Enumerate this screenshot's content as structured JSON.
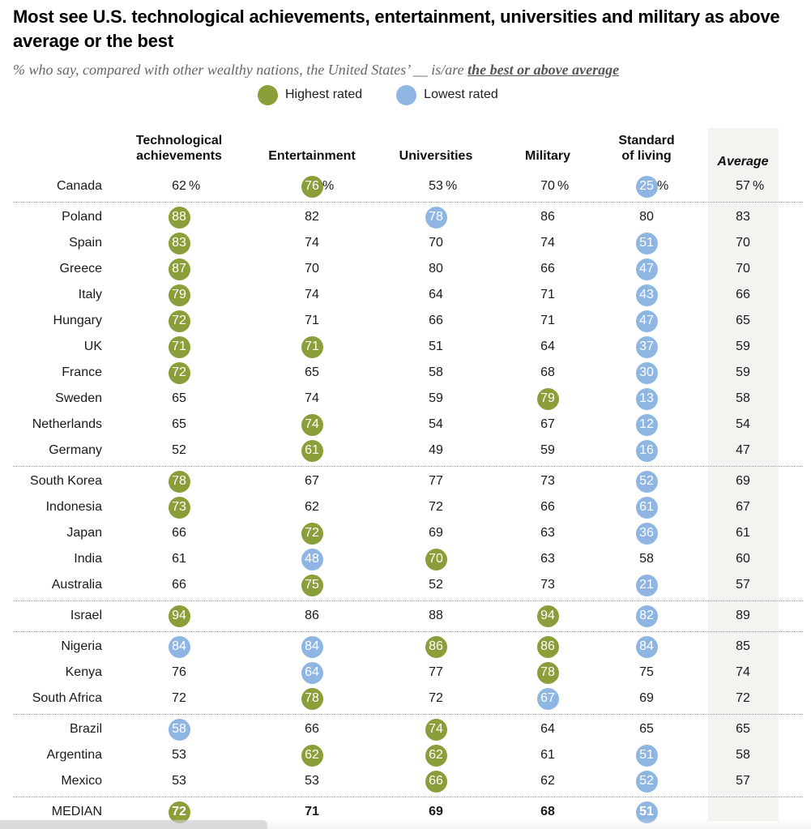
{
  "chart_data": {
    "type": "table",
    "title": "Most see U.S. technological achievements, entertainment, universities and military as above average or the best",
    "subtitle_prefix": "% who say, compared with other wealthy nations, the United States’ __ is/are ",
    "subtitle_emphasis": "the best or above average",
    "legend": [
      {
        "label": "Highest rated",
        "color": "#8a9e3a",
        "key": "high"
      },
      {
        "label": "Lowest rated",
        "color": "#8fb6e3",
        "key": "low"
      }
    ],
    "columns": [
      "Technological achievements",
      "Entertainment",
      "Universities",
      "Military",
      "Standard of living",
      "Average"
    ],
    "column_headers": [
      {
        "line1": "Technological",
        "line2": "achievements"
      },
      {
        "line1": "",
        "line2": "Entertainment"
      },
      {
        "line1": "",
        "line2": "Universities"
      },
      {
        "line1": "",
        "line2": "Military"
      },
      {
        "line1": "Standard",
        "line2": "of living"
      },
      {
        "line1": "",
        "line2": "Average"
      }
    ],
    "percent_suffix": "%",
    "groups": [
      [
        {
          "country": "Canada",
          "values": [
            62,
            76,
            53,
            70,
            25,
            57
          ],
          "highlight": [
            null,
            "high",
            null,
            null,
            "low",
            null
          ],
          "show_percent": true
        }
      ],
      [
        {
          "country": "Poland",
          "values": [
            88,
            82,
            78,
            86,
            80,
            83
          ],
          "highlight": [
            "high",
            null,
            "low",
            null,
            null,
            null
          ]
        },
        {
          "country": "Spain",
          "values": [
            83,
            74,
            70,
            74,
            51,
            70
          ],
          "highlight": [
            "high",
            null,
            null,
            null,
            "low",
            null
          ]
        },
        {
          "country": "Greece",
          "values": [
            87,
            70,
            80,
            66,
            47,
            70
          ],
          "highlight": [
            "high",
            null,
            null,
            null,
            "low",
            null
          ]
        },
        {
          "country": "Italy",
          "values": [
            79,
            74,
            64,
            71,
            43,
            66
          ],
          "highlight": [
            "high",
            null,
            null,
            null,
            "low",
            null
          ]
        },
        {
          "country": "Hungary",
          "values": [
            72,
            71,
            66,
            71,
            47,
            65
          ],
          "highlight": [
            "high",
            null,
            null,
            null,
            "low",
            null
          ]
        },
        {
          "country": "UK",
          "values": [
            71,
            71,
            51,
            64,
            37,
            59
          ],
          "highlight": [
            "high",
            "high",
            null,
            null,
            "low",
            null
          ]
        },
        {
          "country": "France",
          "values": [
            72,
            65,
            58,
            68,
            30,
            59
          ],
          "highlight": [
            "high",
            null,
            null,
            null,
            "low",
            null
          ]
        },
        {
          "country": "Sweden",
          "values": [
            65,
            74,
            59,
            79,
            13,
            58
          ],
          "highlight": [
            null,
            null,
            null,
            "high",
            "low",
            null
          ]
        },
        {
          "country": "Netherlands",
          "values": [
            65,
            74,
            54,
            67,
            12,
            54
          ],
          "highlight": [
            null,
            "high",
            null,
            null,
            "low",
            null
          ]
        },
        {
          "country": "Germany",
          "values": [
            52,
            61,
            49,
            59,
            16,
            47
          ],
          "highlight": [
            null,
            "high",
            null,
            null,
            "low",
            null
          ]
        }
      ],
      [
        {
          "country": "South Korea",
          "values": [
            78,
            67,
            77,
            73,
            52,
            69
          ],
          "highlight": [
            "high",
            null,
            null,
            null,
            "low",
            null
          ]
        },
        {
          "country": "Indonesia",
          "values": [
            73,
            62,
            72,
            66,
            61,
            67
          ],
          "highlight": [
            "high",
            null,
            null,
            null,
            "low",
            null
          ]
        },
        {
          "country": "Japan",
          "values": [
            66,
            72,
            69,
            63,
            36,
            61
          ],
          "highlight": [
            null,
            "high",
            null,
            null,
            "low",
            null
          ]
        },
        {
          "country": "India",
          "values": [
            61,
            48,
            70,
            63,
            58,
            60
          ],
          "highlight": [
            null,
            "low",
            "high",
            null,
            null,
            null
          ]
        },
        {
          "country": "Australia",
          "values": [
            66,
            75,
            52,
            73,
            21,
            57
          ],
          "highlight": [
            null,
            "high",
            null,
            null,
            "low",
            null
          ]
        }
      ],
      [
        {
          "country": "Israel",
          "values": [
            94,
            86,
            88,
            94,
            82,
            89
          ],
          "highlight": [
            "high",
            null,
            null,
            "high",
            "low",
            null
          ]
        }
      ],
      [
        {
          "country": "Nigeria",
          "values": [
            84,
            84,
            86,
            86,
            84,
            85
          ],
          "highlight": [
            "low",
            "low",
            "high",
            "high",
            "low",
            null
          ]
        },
        {
          "country": "Kenya",
          "values": [
            76,
            64,
            77,
            78,
            75,
            74
          ],
          "highlight": [
            null,
            "low",
            null,
            "high",
            null,
            null
          ]
        },
        {
          "country": "South Africa",
          "values": [
            72,
            78,
            72,
            67,
            69,
            72
          ],
          "highlight": [
            null,
            "high",
            null,
            "low",
            null,
            null
          ]
        }
      ],
      [
        {
          "country": "Brazil",
          "values": [
            58,
            66,
            74,
            64,
            65,
            65
          ],
          "highlight": [
            "low",
            null,
            "high",
            null,
            null,
            null
          ]
        },
        {
          "country": "Argentina",
          "values": [
            53,
            62,
            62,
            61,
            51,
            58
          ],
          "highlight": [
            null,
            "high",
            "high",
            null,
            "low",
            null
          ]
        },
        {
          "country": "Mexico",
          "values": [
            53,
            53,
            66,
            62,
            52,
            57
          ],
          "highlight": [
            null,
            null,
            "high",
            null,
            "low",
            null
          ]
        }
      ],
      [
        {
          "country": "MEDIAN",
          "values": [
            72,
            71,
            69,
            68,
            51,
            null
          ],
          "highlight": [
            "high",
            null,
            null,
            null,
            "low",
            null
          ],
          "is_median": true
        }
      ]
    ]
  }
}
